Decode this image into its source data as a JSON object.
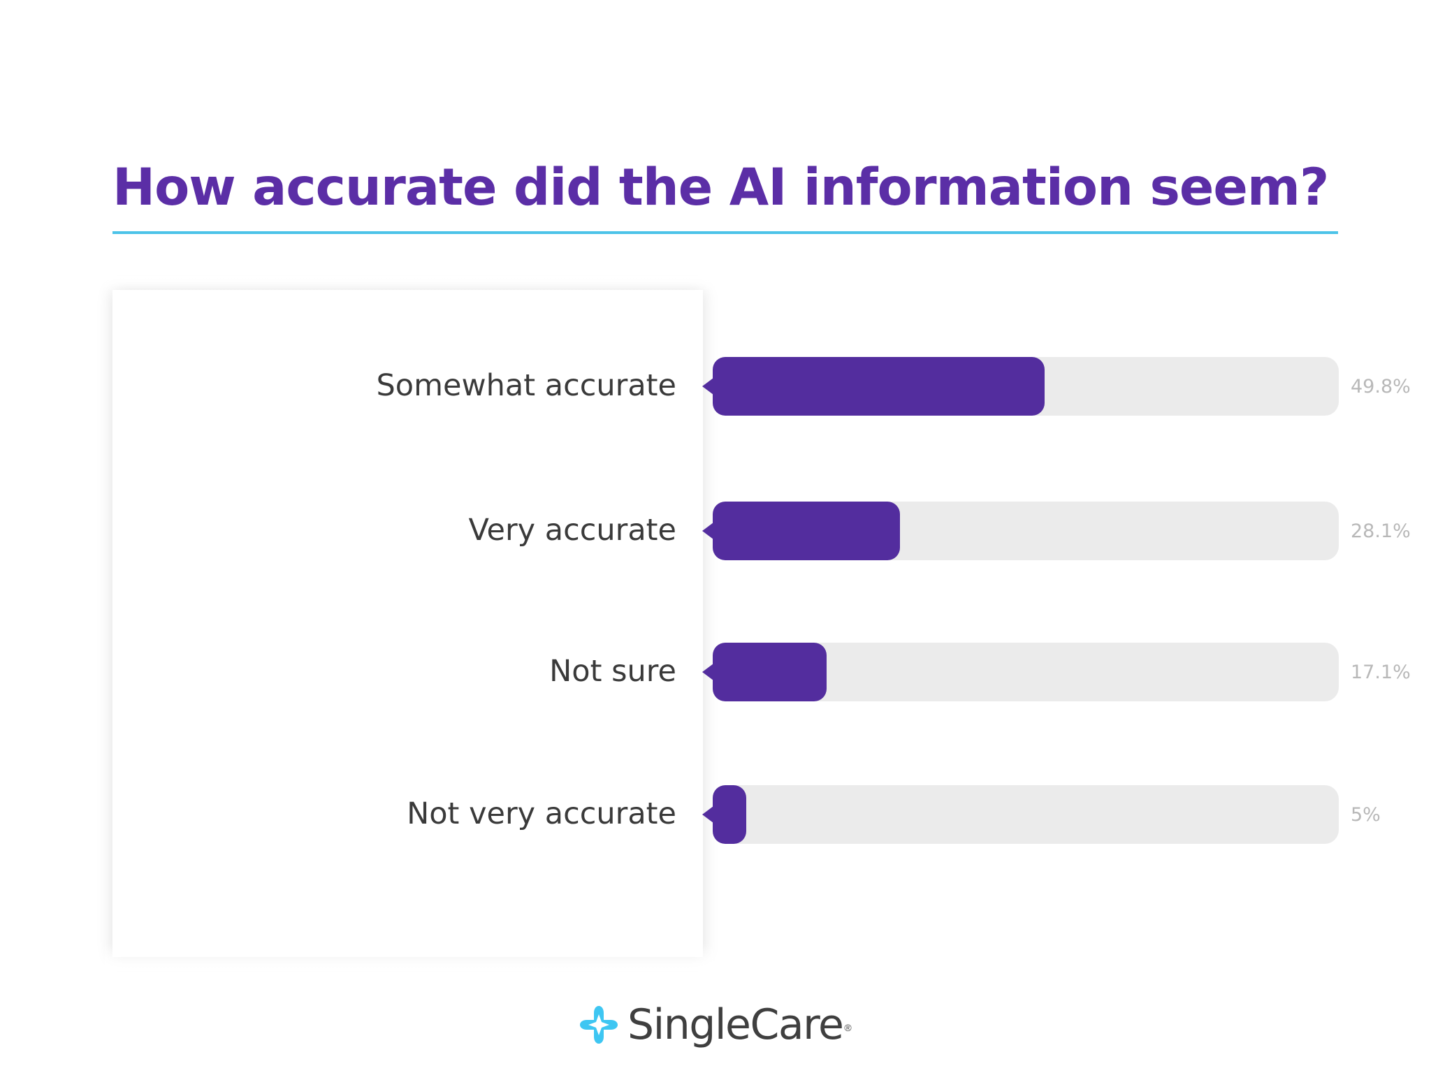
{
  "chart_data": {
    "type": "bar",
    "orientation": "horizontal",
    "title": "How accurate did the AI information seem?",
    "categories": [
      "Somewhat accurate",
      "Very accurate",
      "Not sure",
      "Not very accurate"
    ],
    "values": [
      49.8,
      28.1,
      17.1,
      5
    ],
    "value_labels": [
      "49.8%",
      "28.1%",
      "17.1%",
      "5%"
    ],
    "xlim": [
      0,
      94
    ],
    "grid": false,
    "legend": "none",
    "bar_color": "#532d9e",
    "track_color": "#ebebeb",
    "title_color": "#5b2ea6",
    "rule_color": "#4cc3e8"
  },
  "logo": {
    "text": "SingleCare",
    "reg": "®",
    "icon": "singlecare-cross-icon",
    "color": "#3ec6f2"
  }
}
